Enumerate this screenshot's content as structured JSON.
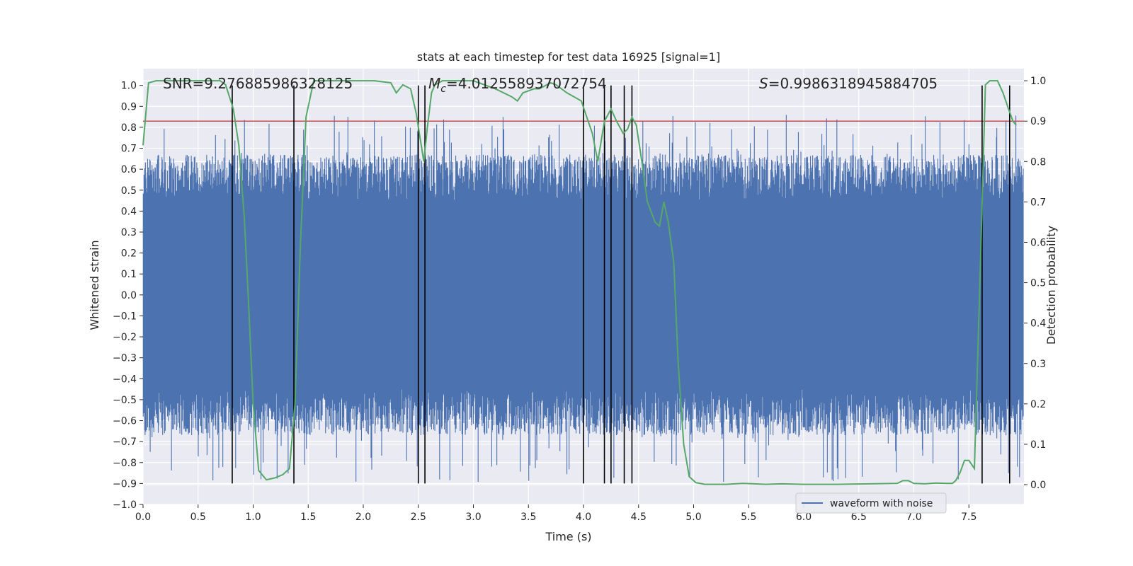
{
  "chart_data": {
    "type": "line",
    "title": "stats at each timestep for test data 16925 [signal=1]",
    "xlabel": "Time (s)",
    "ylabel": "Whitened strain",
    "y2label": "Detection probability",
    "xlim": [
      0.0,
      8.0
    ],
    "ylim": [
      -1.0,
      1.08
    ],
    "y2lim": [
      -0.049,
      1.03
    ],
    "xticks": [
      "0.0",
      "0.5",
      "1.0",
      "1.5",
      "2.0",
      "2.5",
      "3.0",
      "3.5",
      "4.0",
      "4.5",
      "5.0",
      "5.5",
      "6.0",
      "6.5",
      "7.0",
      "7.5"
    ],
    "yticks": [
      "1.0",
      "0.9",
      "0.8",
      "0.7",
      "0.6",
      "0.5",
      "0.4",
      "0.3",
      "0.2",
      "0.1",
      "0.0",
      "−0.1",
      "−0.2",
      "−0.3",
      "−0.4",
      "−0.5",
      "−0.6",
      "−0.7",
      "−0.8",
      "−0.9",
      "−1.0"
    ],
    "y2ticks": [
      "1.0",
      "0.9",
      "0.8",
      "0.7",
      "0.6",
      "0.5",
      "0.4",
      "0.3",
      "0.2",
      "0.1",
      "0.0"
    ],
    "annotations": {
      "snr": "SNR=9.276885986328125",
      "mc_symbol": "M",
      "mc_sub": "c",
      "mc_value": "=4.012558937072754",
      "s_symbol": "S",
      "s_value": "=0.9986318945884705"
    },
    "threshold": {
      "y2": 0.9,
      "color": "#c44e52"
    },
    "vertical_lines_x": [
      0.81,
      1.37,
      2.5,
      2.56,
      4.0,
      4.19,
      4.25,
      4.37,
      4.44,
      7.62,
      7.87
    ],
    "waveform": {
      "name": "waveform with noise",
      "color": "#4c72b0",
      "envelope_typical": 0.45,
      "peak_high": 0.86,
      "peak_low": -0.9
    },
    "probability": {
      "color": "#55a868",
      "x": [
        0.0,
        0.05,
        0.12,
        0.2,
        0.4,
        0.6,
        0.7,
        0.75,
        0.82,
        0.87,
        0.92,
        0.96,
        1.0,
        1.05,
        1.12,
        1.2,
        1.27,
        1.33,
        1.38,
        1.43,
        1.48,
        1.55,
        1.7,
        1.9,
        2.1,
        2.25,
        2.3,
        2.33,
        2.36,
        2.43,
        2.48,
        2.55,
        2.58,
        2.62,
        2.65,
        2.72,
        2.85,
        3.0,
        3.2,
        3.35,
        3.4,
        3.45,
        3.55,
        3.6,
        3.7,
        3.75,
        3.85,
        3.98,
        4.03,
        4.08,
        4.13,
        4.19,
        4.25,
        4.3,
        4.36,
        4.4,
        4.44,
        4.48,
        4.53,
        4.58,
        4.65,
        4.69,
        4.73,
        4.77,
        4.82,
        4.86,
        4.91,
        4.96,
        5.02,
        5.1,
        5.3,
        5.45,
        5.65,
        5.8,
        6.0,
        6.3,
        6.6,
        6.85,
        6.9,
        6.95,
        7.0,
        7.1,
        7.2,
        7.3,
        7.35,
        7.38,
        7.42,
        7.46,
        7.5,
        7.55,
        7.6,
        7.65,
        7.69,
        7.72,
        7.76,
        7.81,
        7.86,
        7.9,
        7.93
      ],
      "y": [
        0.84,
        0.995,
        1.0,
        1.0,
        1.0,
        1.0,
        1.0,
        0.99,
        0.93,
        0.84,
        0.66,
        0.44,
        0.2,
        0.035,
        0.012,
        0.017,
        0.025,
        0.04,
        0.2,
        0.6,
        0.91,
        1.0,
        1.0,
        1.0,
        1.0,
        0.995,
        0.97,
        0.98,
        0.99,
        0.98,
        0.92,
        0.8,
        0.88,
        0.97,
        0.99,
        1.0,
        1.0,
        1.0,
        0.98,
        0.96,
        0.95,
        0.97,
        0.98,
        0.98,
        0.995,
        0.99,
        0.97,
        0.95,
        0.91,
        0.87,
        0.8,
        0.9,
        0.93,
        0.9,
        0.87,
        0.88,
        0.91,
        0.89,
        0.8,
        0.7,
        0.65,
        0.64,
        0.7,
        0.65,
        0.55,
        0.3,
        0.1,
        0.02,
        0.005,
        0.001,
        0.001,
        0.003,
        0.001,
        0.002,
        0.001,
        0.001,
        0.002,
        0.003,
        0.01,
        0.01,
        0.003,
        0.002,
        0.004,
        0.003,
        0.003,
        0.01,
        0.03,
        0.06,
        0.06,
        0.04,
        0.5,
        0.99,
        1.0,
        1.0,
        1.0,
        0.97,
        0.93,
        0.9,
        0.89
      ]
    }
  }
}
